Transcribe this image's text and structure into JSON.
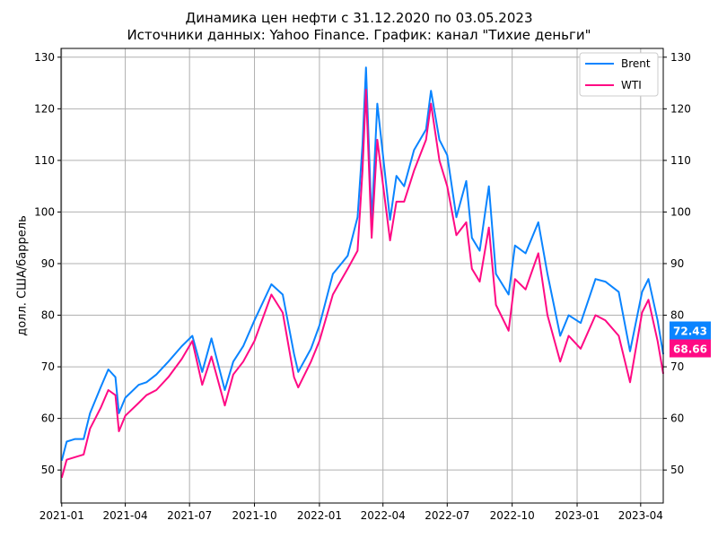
{
  "chart_data": {
    "type": "line",
    "title": "Динамика цен нефти с 31.12.2020 по 03.05.2023",
    "subtitle": "Источники данных: Yahoo Finance. График: канал \"Тихие деньги\"",
    "xlabel": "",
    "ylabel": "долл. США/баррель",
    "xlim": [
      "2020-12-31",
      "2023-05-03"
    ],
    "ylim": [
      43.6,
      131.7
    ],
    "grid": true,
    "legend_position": "top-right",
    "x_ticks": [
      "2021-01",
      "2021-04",
      "2021-07",
      "2021-10",
      "2022-01",
      "2022-04",
      "2022-07",
      "2022-10",
      "2023-01",
      "2023-04"
    ],
    "y_ticks": [
      50,
      60,
      70,
      80,
      90,
      100,
      110,
      120,
      130
    ],
    "x": [
      "2021-01-01",
      "2021-01-08",
      "2021-01-20",
      "2021-02-01",
      "2021-02-10",
      "2021-02-25",
      "2021-03-08",
      "2021-03-18",
      "2021-03-23",
      "2021-04-01",
      "2021-04-20",
      "2021-05-01",
      "2021-05-15",
      "2021-06-01",
      "2021-06-20",
      "2021-07-05",
      "2021-07-19",
      "2021-08-01",
      "2021-08-20",
      "2021-09-01",
      "2021-09-15",
      "2021-10-01",
      "2021-10-25",
      "2021-11-10",
      "2021-11-26",
      "2021-12-02",
      "2021-12-20",
      "2022-01-01",
      "2022-01-20",
      "2022-02-10",
      "2022-02-24",
      "2022-03-03",
      "2022-03-08",
      "2022-03-16",
      "2022-03-24",
      "2022-04-11",
      "2022-04-20",
      "2022-05-01",
      "2022-05-15",
      "2022-06-01",
      "2022-06-08",
      "2022-06-20",
      "2022-07-01",
      "2022-07-14",
      "2022-07-28",
      "2022-08-05",
      "2022-08-16",
      "2022-08-29",
      "2022-09-08",
      "2022-09-26",
      "2022-10-05",
      "2022-10-20",
      "2022-11-07",
      "2022-11-20",
      "2022-12-08",
      "2022-12-20",
      "2023-01-06",
      "2023-01-27",
      "2023-02-10",
      "2023-03-01",
      "2023-03-17",
      "2023-04-03",
      "2023-04-12",
      "2023-04-25",
      "2023-05-03"
    ],
    "series": [
      {
        "name": "Brent",
        "color": "#0A84FF",
        "values": [
          51.8,
          55.5,
          56,
          56,
          61,
          66,
          69.5,
          68,
          61,
          64,
          66.5,
          67,
          68.5,
          71,
          74,
          76,
          69,
          75.5,
          65.5,
          71,
          74,
          79,
          86,
          84,
          72.5,
          69,
          73.5,
          78,
          88,
          91.5,
          99,
          113,
          128,
          98,
          121,
          98.5,
          107,
          105,
          112,
          116,
          123.5,
          114,
          111,
          99,
          106,
          95,
          92.5,
          105,
          88,
          84,
          93.5,
          92,
          98,
          88,
          76,
          80,
          78.5,
          87,
          86.5,
          84.5,
          73,
          84.5,
          87,
          79,
          72.43
        ]
      },
      {
        "name": "WTI",
        "color": "#FF0A84",
        "values": [
          48.5,
          52,
          52.5,
          53,
          58,
          62,
          65.5,
          64.5,
          57.5,
          60.5,
          63,
          64.5,
          65.5,
          68,
          71.5,
          75,
          66.5,
          72,
          62.5,
          68.5,
          71,
          75,
          84,
          80.5,
          68,
          66,
          71,
          75,
          84,
          89,
          92.5,
          108,
          123.7,
          95,
          114,
          94.5,
          102,
          102,
          108,
          114,
          121,
          110,
          105,
          95.5,
          98,
          89,
          86.5,
          97,
          82,
          77,
          87,
          85,
          92,
          80,
          71,
          76,
          73.5,
          80,
          79,
          76,
          67,
          80.5,
          83,
          75,
          68.66
        ]
      }
    ],
    "last_value_labels": [
      "72.43",
      "68.66"
    ]
  }
}
